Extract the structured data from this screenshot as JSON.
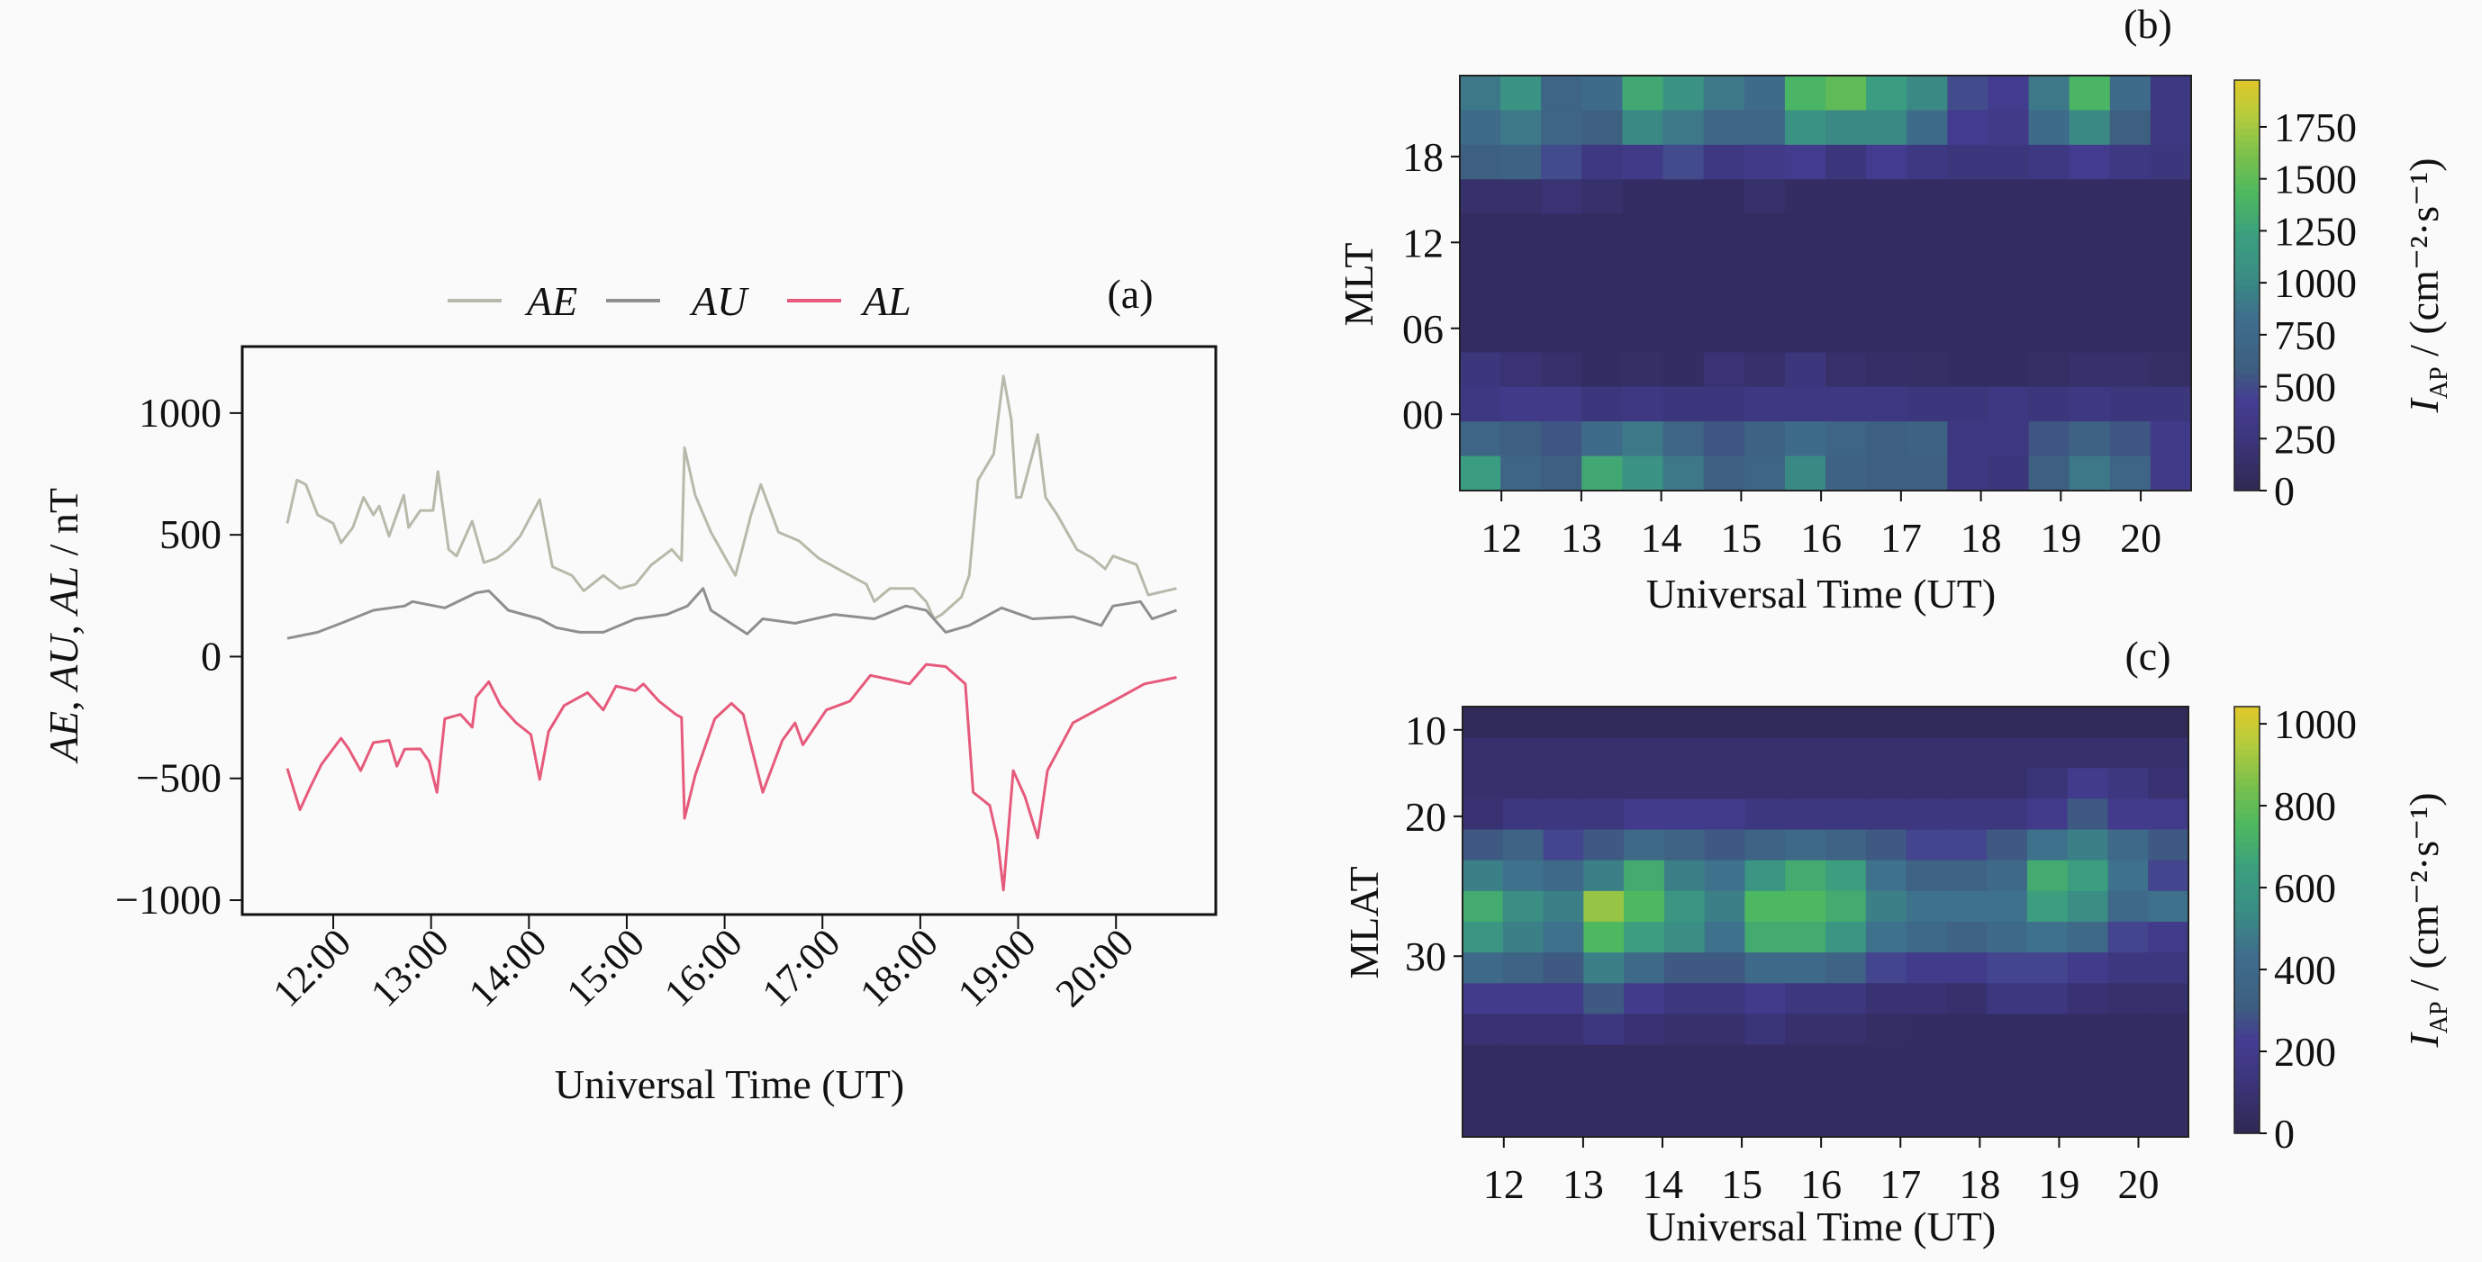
{
  "chart_data": [
    {
      "panel": "(a)",
      "type": "line",
      "xlabel": "Universal Time (UT)",
      "ylabel": "AE, AU, AL / nT",
      "xlim": [
        11.07,
        21.02
      ],
      "ylim": [
        -1059,
        1273
      ],
      "xticks": [
        12,
        13,
        14,
        15,
        16,
        17,
        18,
        19,
        20
      ],
      "xtick_labels": [
        "12:00",
        "13:00",
        "14:00",
        "15:00",
        "16:00",
        "17:00",
        "18:00",
        "19:00",
        "20:00"
      ],
      "yticks": [
        1000,
        500,
        0,
        -500,
        -1000
      ],
      "ytick_labels": [
        "1000",
        "500",
        "0",
        "−500",
        "−1000"
      ],
      "legend": {
        "placement": "top-center, outside",
        "entries": [
          "AE",
          "AU",
          "AL"
        ]
      },
      "series": [
        {
          "name": "AE",
          "color": "#b9b9ab",
          "x": [
            11.53,
            11.63,
            11.72,
            11.84,
            12.0,
            12.08,
            12.2,
            12.31,
            12.41,
            12.47,
            12.57,
            12.72,
            12.77,
            12.89,
            13.02,
            13.07,
            13.18,
            13.26,
            13.42,
            13.54,
            13.67,
            13.79,
            13.91,
            14.11,
            14.24,
            14.44,
            14.56,
            14.76,
            14.93,
            15.09,
            15.25,
            15.46,
            15.56,
            15.59,
            15.7,
            15.86,
            16.11,
            16.27,
            16.37,
            16.55,
            16.76,
            16.96,
            17.2,
            17.45,
            17.53,
            17.69,
            17.93,
            18.06,
            18.14,
            18.22,
            18.42,
            18.5,
            18.59,
            18.75,
            18.85,
            18.93,
            18.98,
            19.03,
            19.2,
            19.28,
            19.4,
            19.6,
            19.76,
            19.89,
            19.97,
            20.21,
            20.33,
            20.62
          ],
          "y": [
            547,
            725,
            707,
            582,
            547,
            467,
            530,
            654,
            582,
            618,
            494,
            663,
            530,
            600,
            600,
            760,
            440,
            413,
            556,
            386,
            404,
            440,
            494,
            645,
            369,
            333,
            270,
            333,
            280,
            297,
            376,
            440,
            395,
            858,
            662,
            511,
            333,
            582,
            707,
            511,
            475,
            404,
            351,
            297,
            226,
            280,
            280,
            226,
            155,
            173,
            244,
            333,
            725,
            832,
            1152,
            974,
            654,
            654,
            912,
            654,
            582,
            440,
            404,
            360,
            413,
            378,
            253,
            280
          ]
        },
        {
          "name": "AU",
          "color": "#8f8f8f",
          "x": [
            11.53,
            11.84,
            12.08,
            12.41,
            12.73,
            12.81,
            13.14,
            13.46,
            13.59,
            13.79,
            14.11,
            14.28,
            14.52,
            14.76,
            15.09,
            15.41,
            15.62,
            15.78,
            15.86,
            16.23,
            16.39,
            16.72,
            17.12,
            17.53,
            17.85,
            18.06,
            18.26,
            18.5,
            18.83,
            19.15,
            19.56,
            19.85,
            19.97,
            20.25,
            20.37,
            20.62
          ],
          "y": [
            75,
            100,
            137,
            190,
            208,
            226,
            200,
            262,
            270,
            190,
            155,
            119,
            100,
            100,
            155,
            173,
            208,
            280,
            190,
            93,
            155,
            137,
            173,
            155,
            208,
            190,
            100,
            128,
            200,
            155,
            164,
            128,
            208,
            226,
            155,
            190
          ]
        },
        {
          "name": "AL",
          "color": "#e65a7c",
          "x": [
            11.53,
            11.66,
            11.76,
            11.88,
            12.08,
            12.16,
            12.28,
            12.41,
            12.57,
            12.65,
            12.73,
            12.89,
            12.98,
            13.06,
            13.14,
            13.3,
            13.42,
            13.46,
            13.59,
            13.71,
            13.87,
            14.02,
            14.11,
            14.2,
            14.36,
            14.6,
            14.76,
            14.89,
            15.09,
            15.17,
            15.33,
            15.5,
            15.56,
            15.59,
            15.7,
            15.9,
            16.07,
            16.19,
            16.39,
            16.59,
            16.72,
            16.8,
            17.04,
            17.28,
            17.49,
            17.69,
            17.89,
            18.06,
            18.26,
            18.46,
            18.54,
            18.71,
            18.79,
            18.85,
            18.95,
            19.07,
            19.2,
            19.3,
            19.56,
            19.97,
            20.29,
            20.62
          ],
          "y": [
            -459,
            -629,
            -540,
            -442,
            -335,
            -380,
            -468,
            -353,
            -344,
            -450,
            -380,
            -379,
            -430,
            -557,
            -255,
            -237,
            -290,
            -166,
            -103,
            -201,
            -272,
            -320,
            -504,
            -308,
            -201,
            -148,
            -219,
            -121,
            -140,
            -112,
            -183,
            -237,
            -250,
            -664,
            -486,
            -255,
            -192,
            -237,
            -557,
            -344,
            -272,
            -362,
            -219,
            -183,
            -77,
            -94,
            -112,
            -32,
            -41,
            -112,
            -557,
            -611,
            -753,
            -958,
            -468,
            -575,
            -744,
            -468,
            -272,
            -183,
            -112,
            -85
          ]
        }
      ]
    },
    {
      "panel": "(b)",
      "type": "heatmap",
      "xlabel": "Universal Time (UT)",
      "ylabel": "MLT",
      "xlim": [
        11.48,
        20.63
      ],
      "ylim": [
        -5.33,
        23.65
      ],
      "xticks": [
        12,
        13,
        14,
        15,
        16,
        17,
        18,
        19,
        20
      ],
      "xtick_labels": [
        "12",
        "13",
        "14",
        "15",
        "16",
        "17",
        "18",
        "19",
        "20"
      ],
      "yticks": [
        18,
        12,
        6,
        0
      ],
      "ytick_labels": [
        "18",
        "12",
        "06",
        "00"
      ],
      "colorbar": {
        "label_symbol": "I",
        "label_sub": "AP",
        "label_unit": " / (cm⁻²·s⁻¹)",
        "vmin": 0,
        "vmax": 1975,
        "ticks": [
          0,
          250,
          500,
          750,
          1000,
          1250,
          1500,
          1750
        ],
        "tick_labels": [
          "0",
          "250",
          "500",
          "750",
          "1000",
          "1250",
          "1500",
          "1750"
        ]
      },
      "grid_rows_top_to_bottom": [
        [
          900,
          1100,
          700,
          800,
          1300,
          1100,
          900,
          800,
          1400,
          1500,
          1200,
          1000,
          500,
          400,
          900,
          1400,
          800,
          300
        ],
        [
          800,
          900,
          700,
          600,
          1000,
          900,
          700,
          700,
          1100,
          1000,
          1000,
          800,
          400,
          350,
          800,
          1000,
          600,
          300
        ],
        [
          600,
          650,
          500,
          300,
          350,
          500,
          300,
          350,
          400,
          250,
          400,
          300,
          250,
          250,
          300,
          400,
          300,
          250
        ],
        [
          150,
          150,
          200,
          150,
          100,
          100,
          100,
          150,
          100,
          100,
          100,
          100,
          100,
          100,
          100,
          100,
          100,
          100
        ],
        [
          80,
          80,
          80,
          80,
          80,
          80,
          80,
          80,
          80,
          80,
          80,
          80,
          80,
          80,
          80,
          80,
          80,
          80
        ],
        [
          80,
          80,
          80,
          80,
          80,
          80,
          80,
          80,
          80,
          80,
          80,
          80,
          80,
          80,
          80,
          80,
          80,
          80
        ],
        [
          80,
          80,
          80,
          80,
          80,
          80,
          80,
          80,
          80,
          80,
          80,
          80,
          80,
          80,
          80,
          80,
          80,
          80
        ],
        [
          80,
          80,
          80,
          80,
          80,
          80,
          80,
          80,
          80,
          80,
          80,
          80,
          80,
          80,
          80,
          80,
          80,
          80
        ],
        [
          250,
          200,
          150,
          100,
          120,
          100,
          200,
          150,
          250,
          150,
          130,
          120,
          100,
          100,
          120,
          150,
          150,
          120
        ],
        [
          300,
          350,
          350,
          250,
          300,
          250,
          250,
          300,
          300,
          300,
          300,
          250,
          250,
          300,
          250,
          300,
          250,
          250
        ],
        [
          700,
          600,
          550,
          800,
          900,
          700,
          550,
          650,
          800,
          700,
          600,
          650,
          300,
          300,
          550,
          650,
          550,
          350
        ],
        [
          1200,
          700,
          600,
          1300,
          1100,
          900,
          600,
          700,
          1000,
          650,
          600,
          600,
          300,
          250,
          600,
          900,
          700,
          350
        ]
      ]
    },
    {
      "panel": "(c)",
      "type": "heatmap",
      "xlabel": "Universal Time (UT)",
      "ylabel": "MLAT",
      "xlim": [
        11.48,
        20.63
      ],
      "xticks": [
        12,
        13,
        14,
        15,
        16,
        17,
        18,
        19,
        20
      ],
      "xtick_labels": [
        "12",
        "13",
        "14",
        "15",
        "16",
        "17",
        "18",
        "19",
        "20"
      ],
      "yticks": [
        10,
        20,
        30
      ],
      "ytick_labels": [
        "10",
        "20",
        "30"
      ],
      "colorbar": {
        "label_symbol": "I",
        "label_sub": "AP",
        "label_unit": " / (cm⁻²·s⁻¹)",
        "vmin": 0,
        "vmax": 1042,
        "ticks": [
          0,
          200,
          400,
          600,
          800,
          1000
        ],
        "tick_labels": [
          "0",
          "200",
          "400",
          "600",
          "800",
          "1000"
        ]
      },
      "grid_rows_top_to_bottom": [
        [
          20,
          20,
          20,
          20,
          20,
          20,
          20,
          20,
          20,
          20,
          20,
          20,
          20,
          20,
          20,
          20,
          20,
          20
        ],
        [
          80,
          80,
          80,
          80,
          80,
          80,
          80,
          80,
          80,
          80,
          80,
          80,
          80,
          80,
          80,
          80,
          80,
          80
        ],
        [
          80,
          80,
          80,
          80,
          80,
          80,
          80,
          80,
          80,
          80,
          80,
          80,
          80,
          80,
          120,
          200,
          150,
          100
        ],
        [
          100,
          150,
          150,
          150,
          200,
          200,
          200,
          150,
          150,
          150,
          150,
          150,
          150,
          150,
          200,
          300,
          200,
          200
        ],
        [
          300,
          350,
          250,
          300,
          400,
          350,
          300,
          350,
          400,
          350,
          300,
          250,
          250,
          300,
          450,
          500,
          400,
          300
        ],
        [
          500,
          450,
          400,
          500,
          700,
          500,
          450,
          600,
          700,
          650,
          450,
          350,
          350,
          400,
          700,
          650,
          450,
          250
        ],
        [
          700,
          550,
          500,
          900,
          750,
          600,
          500,
          750,
          750,
          700,
          500,
          450,
          450,
          450,
          650,
          550,
          400,
          450
        ],
        [
          600,
          500,
          450,
          750,
          650,
          550,
          450,
          700,
          700,
          600,
          450,
          400,
          350,
          400,
          450,
          400,
          250,
          200
        ],
        [
          400,
          350,
          300,
          500,
          400,
          300,
          300,
          400,
          400,
          350,
          250,
          200,
          200,
          250,
          250,
          200,
          150,
          150
        ],
        [
          200,
          200,
          200,
          300,
          200,
          150,
          150,
          200,
          150,
          150,
          100,
          100,
          80,
          150,
          150,
          100,
          80,
          80
        ],
        [
          100,
          100,
          100,
          150,
          100,
          80,
          80,
          120,
          80,
          80,
          60,
          50,
          50,
          50,
          50,
          50,
          50,
          50
        ],
        [
          50,
          50,
          50,
          50,
          50,
          50,
          50,
          50,
          50,
          50,
          50,
          50,
          50,
          50,
          50,
          50,
          50,
          50
        ],
        [
          50,
          50,
          50,
          50,
          50,
          50,
          50,
          50,
          50,
          50,
          50,
          50,
          50,
          50,
          50,
          50,
          50,
          50
        ],
        [
          50,
          50,
          50,
          50,
          50,
          50,
          50,
          50,
          50,
          50,
          50,
          50,
          50,
          50,
          50,
          50,
          50,
          50
        ]
      ]
    }
  ]
}
